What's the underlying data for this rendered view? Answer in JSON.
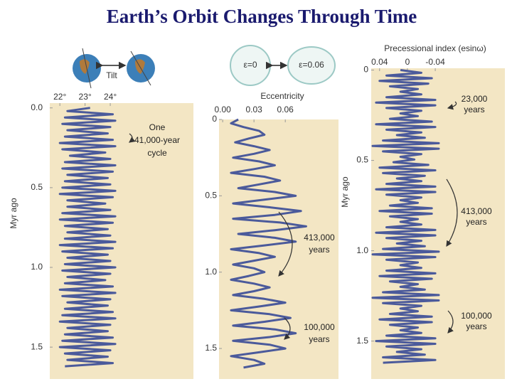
{
  "title": "Earth’s Orbit Changes Through Time",
  "chart_data": [
    {
      "type": "line",
      "orientation": "vertical",
      "ylabel": "Myr ago",
      "illustration_labels": [
        "Tilt"
      ],
      "annotations": [
        [
          "One",
          "41,000-year",
          "cycle"
        ]
      ],
      "xlim": [
        21.6,
        27.3
      ],
      "xticks": [
        {
          "value": 22,
          "label": "22°"
        },
        {
          "value": 23,
          "label": "23°"
        },
        {
          "value": 24,
          "label": "24°"
        }
      ],
      "ylim": [
        -0.03,
        1.7
      ],
      "yticks": [
        {
          "value": 0,
          "label": "0.0"
        },
        0.5,
        {
          "value": 1,
          "label": "1.0"
        },
        1.5
      ],
      "color": "#4b5a9b",
      "background": "#f3e6c4",
      "y": [
        0,
        0.02,
        0.04,
        0.06,
        0.08,
        0.1,
        0.12,
        0.14,
        0.16,
        0.18,
        0.2,
        0.22,
        0.24,
        0.26,
        0.28,
        0.3,
        0.32,
        0.34,
        0.36,
        0.38,
        0.4,
        0.42,
        0.44,
        0.46,
        0.48,
        0.5,
        0.52,
        0.54,
        0.56,
        0.58,
        0.6,
        0.62,
        0.64,
        0.66,
        0.68,
        0.7,
        0.72,
        0.74,
        0.76,
        0.78,
        0.8,
        0.82,
        0.84,
        0.86,
        0.88,
        0.9,
        0.92,
        0.94,
        0.96,
        0.98,
        1,
        1.02,
        1.04,
        1.06,
        1.08,
        1.1,
        1.12,
        1.14,
        1.16,
        1.18,
        1.2,
        1.22,
        1.24,
        1.26,
        1.28,
        1.3,
        1.32,
        1.34,
        1.36,
        1.38,
        1.4,
        1.42,
        1.44,
        1.46,
        1.48,
        1.5,
        1.52,
        1.54,
        1.56,
        1.58,
        1.6,
        1.62
      ],
      "values": [
        23.2,
        22.3,
        24.1,
        22.2,
        24.2,
        22.1,
        24.0,
        22.3,
        23.9,
        22.2,
        24.1,
        22.0,
        24.2,
        22.1,
        23.8,
        22.4,
        24.0,
        22.2,
        24.2,
        22.1,
        24.1,
        22.3,
        23.9,
        22.2,
        24.0,
        22.1,
        24.2,
        22.0,
        24.1,
        22.3,
        23.8,
        22.3,
        24.0,
        22.1,
        24.2,
        22.0,
        24.1,
        22.2,
        23.9,
        22.3,
        24.0,
        22.2,
        24.2,
        22.0,
        24.1,
        22.1,
        23.9,
        22.3,
        24.0,
        22.2,
        24.2,
        22.1,
        24.0,
        22.3,
        23.8,
        22.2,
        24.1,
        22.0,
        24.2,
        22.1,
        24.0,
        22.3,
        23.9,
        22.2,
        24.1,
        22.1,
        24.2,
        22.0,
        24.0,
        22.3,
        23.9,
        22.2,
        24.1,
        22.1,
        24.2,
        22.0,
        24.0,
        22.2,
        23.9,
        22.3,
        24.1,
        22.2
      ]
    },
    {
      "type": "line",
      "orientation": "vertical",
      "xlabel": "Eccentricity",
      "illustration_labels": [
        "ε=0",
        "ε=0.06"
      ],
      "annotations": [
        [
          "413,000",
          "years"
        ],
        [
          "100,000",
          "years"
        ]
      ],
      "xlim": [
        -0.0035,
        0.111
      ],
      "xticks": [
        {
          "value": 0,
          "label": "0.00"
        },
        0.03,
        0.06
      ],
      "ylim": [
        0,
        1.7
      ],
      "yticks": [
        0,
        0.5,
        {
          "value": 1,
          "label": "1.0"
        },
        1.5
      ],
      "color": "#4b5a9b",
      "background": "#f3e6c4",
      "y": [
        0,
        0.025,
        0.05,
        0.075,
        0.1,
        0.125,
        0.15,
        0.175,
        0.2,
        0.225,
        0.25,
        0.275,
        0.3,
        0.325,
        0.35,
        0.375,
        0.4,
        0.425,
        0.45,
        0.475,
        0.5,
        0.525,
        0.55,
        0.575,
        0.6,
        0.625,
        0.65,
        0.675,
        0.7,
        0.725,
        0.75,
        0.775,
        0.8,
        0.825,
        0.85,
        0.875,
        0.9,
        0.925,
        0.95,
        0.975,
        1,
        1.025,
        1.05,
        1.075,
        1.1,
        1.125,
        1.15,
        1.175,
        1.2,
        1.225,
        1.25,
        1.275,
        1.3,
        1.325,
        1.35,
        1.375,
        1.4,
        1.425,
        1.45,
        1.475,
        1.5,
        1.525,
        1.55,
        1.575,
        1.6,
        1.625
      ],
      "values": [
        0.015,
        0.008,
        0.02,
        0.035,
        0.04,
        0.025,
        0.012,
        0.03,
        0.045,
        0.03,
        0.01,
        0.035,
        0.05,
        0.03,
        0.008,
        0.04,
        0.055,
        0.035,
        0.015,
        0.05,
        0.07,
        0.04,
        0.01,
        0.045,
        0.075,
        0.05,
        0.01,
        0.055,
        0.08,
        0.05,
        0.015,
        0.05,
        0.07,
        0.04,
        0.008,
        0.035,
        0.05,
        0.03,
        0.01,
        0.03,
        0.04,
        0.025,
        0.008,
        0.03,
        0.045,
        0.03,
        0.01,
        0.04,
        0.06,
        0.035,
        0.008,
        0.045,
        0.065,
        0.04,
        0.01,
        0.05,
        0.07,
        0.045,
        0.01,
        0.045,
        0.06,
        0.035,
        0.008,
        0.03,
        0.04,
        0.02
      ]
    },
    {
      "type": "line",
      "orientation": "vertical",
      "xlabel": "Precessional index (esinω)",
      "ylabel": "Myr ago",
      "annotations": [
        [
          "23,000",
          "years"
        ],
        [
          "413,000",
          "years"
        ],
        [
          "100,000",
          "years"
        ]
      ],
      "xlim": [
        0.052,
        -0.14
      ],
      "xticks": [
        0.04,
        0,
        -0.04
      ],
      "ylim": [
        -0.01,
        1.71
      ],
      "yticks": [
        0,
        0.5,
        {
          "value": 1,
          "label": "1.0"
        },
        1.5
      ],
      "color": "#4b5a9b",
      "background": "#f3e6c4",
      "y": [
        0,
        0.015,
        0.03,
        0.045,
        0.06,
        0.075,
        0.09,
        0.105,
        0.12,
        0.135,
        0.15,
        0.165,
        0.18,
        0.195,
        0.21,
        0.225,
        0.24,
        0.255,
        0.27,
        0.285,
        0.3,
        0.315,
        0.33,
        0.345,
        0.36,
        0.375,
        0.39,
        0.405,
        0.42,
        0.435,
        0.45,
        0.465,
        0.48,
        0.495,
        0.51,
        0.525,
        0.54,
        0.555,
        0.57,
        0.585,
        0.6,
        0.615,
        0.63,
        0.645,
        0.66,
        0.675,
        0.69,
        0.705,
        0.72,
        0.735,
        0.75,
        0.765,
        0.78,
        0.795,
        0.81,
        0.825,
        0.84,
        0.855,
        0.87,
        0.885,
        0.9,
        0.915,
        0.93,
        0.945,
        0.96,
        0.975,
        0.99,
        1.005,
        1.02,
        1.035,
        1.05,
        1.065,
        1.08,
        1.095,
        1.11,
        1.125,
        1.14,
        1.155,
        1.17,
        1.185,
        1.2,
        1.215,
        1.23,
        1.245,
        1.26,
        1.275,
        1.29,
        1.305,
        1.32,
        1.335,
        1.35,
        1.365,
        1.38,
        1.395,
        1.41,
        1.425,
        1.44,
        1.455,
        1.47,
        1.485,
        1.5,
        1.515,
        1.53,
        1.545,
        1.56,
        1.575,
        1.59,
        1.605,
        1.62
      ],
      "values": [
        0.01,
        -0.02,
        0.03,
        -0.035,
        0.04,
        -0.03,
        0.025,
        -0.015,
        0.01,
        -0.02,
        0.03,
        -0.04,
        0.045,
        -0.04,
        0.03,
        -0.02,
        0.01,
        -0.015,
        0.025,
        -0.035,
        0.045,
        -0.04,
        0.03,
        -0.02,
        0.015,
        -0.025,
        0.035,
        -0.045,
        0.05,
        -0.045,
        0.035,
        -0.02,
        0.01,
        -0.01,
        0.02,
        -0.03,
        0.04,
        -0.04,
        0.035,
        -0.025,
        0.015,
        -0.02,
        0.03,
        -0.04,
        0.045,
        -0.04,
        0.03,
        -0.02,
        0.01,
        -0.015,
        0.025,
        -0.035,
        0.04,
        -0.035,
        0.025,
        -0.015,
        0.01,
        -0.02,
        0.03,
        -0.04,
        0.045,
        -0.04,
        0.03,
        -0.02,
        0.015,
        -0.025,
        0.035,
        -0.045,
        0.05,
        -0.04,
        0.03,
        -0.015,
        0.01,
        -0.02,
        0.03,
        -0.04,
        0.04,
        -0.035,
        0.025,
        -0.015,
        0.01,
        -0.025,
        0.035,
        -0.045,
        0.05,
        -0.045,
        0.035,
        -0.02,
        0.01,
        -0.015,
        0.025,
        -0.035,
        0.04,
        -0.035,
        0.025,
        -0.015,
        0.01,
        -0.02,
        0.03,
        -0.04,
        0.045,
        -0.04,
        0.03,
        -0.02,
        0.015,
        -0.025,
        0.035,
        -0.04,
        0.035
      ]
    }
  ]
}
